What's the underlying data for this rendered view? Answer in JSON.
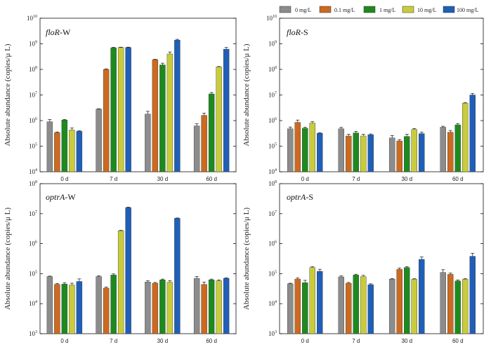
{
  "chart_data": {
    "type": "bar",
    "yscale": "log",
    "ylabel": "Absolute abundance (copies/μ L)",
    "legend": {
      "position": "top-right",
      "series": [
        {
          "name": "0 mg/L",
          "color": "#8c8c8c"
        },
        {
          "name": "0.1 mg/L",
          "color": "#cc6a1f"
        },
        {
          "name": "1 mg/L",
          "color": "#1e8a1e"
        },
        {
          "name": "10 mg/L",
          "color": "#c8cc3c"
        },
        {
          "name": "100 mg/L",
          "color": "#1f5fb8"
        }
      ]
    },
    "categories": [
      "0 d",
      "7 d",
      "30 d",
      "60 d"
    ],
    "panels": [
      {
        "title_gene": "floR",
        "title_suffix": "-W",
        "ylim_exp": [
          4,
          10
        ],
        "ticks": [
          {
            "base": "10",
            "exp": "4"
          },
          {
            "base": "10",
            "exp": "5"
          },
          {
            "base": "10",
            "exp": "6"
          },
          {
            "base": "10",
            "exp": "7"
          },
          {
            "base": "10",
            "exp": "8"
          },
          {
            "base": "10",
            "exp": "9"
          },
          {
            "base": "10",
            "exp": "10"
          }
        ],
        "values": [
          [
            900000,
            340000,
            1050000,
            430000,
            380000
          ],
          [
            2800000,
            100000000,
            700000000,
            720000000,
            720000000
          ],
          [
            1800000,
            240000000,
            150000000,
            400000000,
            1400000000
          ],
          [
            620000,
            1600000,
            11000000,
            125000000,
            620000000
          ]
        ],
        "errors": [
          [
            200000,
            20000,
            50000,
            80000,
            20000
          ],
          [
            100000,
            5000000,
            30000000,
            20000000,
            20000000
          ],
          [
            500000,
            10000000,
            25000000,
            80000000,
            100000000
          ],
          [
            130000,
            350000,
            1500000,
            5000000,
            100000000
          ]
        ]
      },
      {
        "title_gene": "floR",
        "title_suffix": "-S",
        "ylim_exp": [
          4,
          10
        ],
        "ticks": [
          {
            "base": "10",
            "exp": "4"
          },
          {
            "base": "10",
            "exp": "5"
          },
          {
            "base": "10",
            "exp": "6"
          },
          {
            "base": "10",
            "exp": "7"
          },
          {
            "base": "10",
            "exp": "8"
          },
          {
            "base": "10",
            "exp": "9"
          },
          {
            "base": "10",
            "exp": "10"
          }
        ],
        "values": [
          [
            480000,
            850000,
            500000,
            800000,
            320000
          ],
          [
            480000,
            250000,
            330000,
            250000,
            280000
          ],
          [
            210000,
            160000,
            240000,
            450000,
            310000
          ],
          [
            550000,
            350000,
            680000,
            4800000,
            10000000
          ]
        ],
        "errors": [
          [
            80000,
            200000,
            50000,
            100000,
            15000
          ],
          [
            60000,
            40000,
            50000,
            40000,
            20000
          ],
          [
            50000,
            20000,
            50000,
            40000,
            40000
          ],
          [
            50000,
            60000,
            80000,
            300000,
            1500000
          ]
        ]
      },
      {
        "title_gene": "optrA",
        "title_suffix": "-W",
        "ylim_exp": [
          3,
          8
        ],
        "ticks": [
          {
            "base": "10",
            "exp": "3"
          },
          {
            "base": "10",
            "exp": "4"
          },
          {
            "base": "10",
            "exp": "5"
          },
          {
            "base": "10",
            "exp": "6"
          },
          {
            "base": "10",
            "exp": "7"
          },
          {
            "base": "10",
            "exp": "8"
          }
        ],
        "values": [
          [
            80000,
            44000,
            45000,
            42000,
            55000
          ],
          [
            80000,
            33000,
            90000,
            2700000,
            16000000
          ],
          [
            53000,
            48000,
            62000,
            52000,
            7000000
          ],
          [
            70000,
            44000,
            62000,
            58000,
            70000
          ]
        ],
        "errors": [
          [
            3000,
            3000,
            5000,
            6000,
            12000
          ],
          [
            5000,
            3000,
            8000,
            100000,
            500000
          ],
          [
            5000,
            3000,
            4000,
            6000,
            200000
          ],
          [
            10000,
            8000,
            4000,
            4000,
            3000
          ]
        ]
      },
      {
        "title_gene": "optrA",
        "title_suffix": "-S",
        "ylim_exp": [
          3,
          8
        ],
        "ticks": [
          {
            "base": "10",
            "exp": "3"
          },
          {
            "base": "10",
            "exp": "4"
          },
          {
            "base": "10",
            "exp": "5"
          },
          {
            "base": "10",
            "exp": "6"
          },
          {
            "base": "10",
            "exp": "7"
          },
          {
            "base": "10",
            "exp": "8"
          }
        ],
        "values": [
          [
            46000,
            66000,
            50000,
            160000,
            120000
          ],
          [
            78000,
            48000,
            90000,
            80000,
            43000
          ],
          [
            66000,
            140000,
            160000,
            65000,
            300000
          ],
          [
            110000,
            95000,
            57000,
            65000,
            380000
          ]
        ],
        "errors": [
          [
            2000,
            6000,
            10000,
            10000,
            20000
          ],
          [
            6000,
            3000,
            6000,
            8000,
            3000
          ],
          [
            3000,
            15000,
            12000,
            3000,
            60000
          ],
          [
            25000,
            10000,
            5000,
            4000,
            100000
          ]
        ]
      }
    ]
  }
}
